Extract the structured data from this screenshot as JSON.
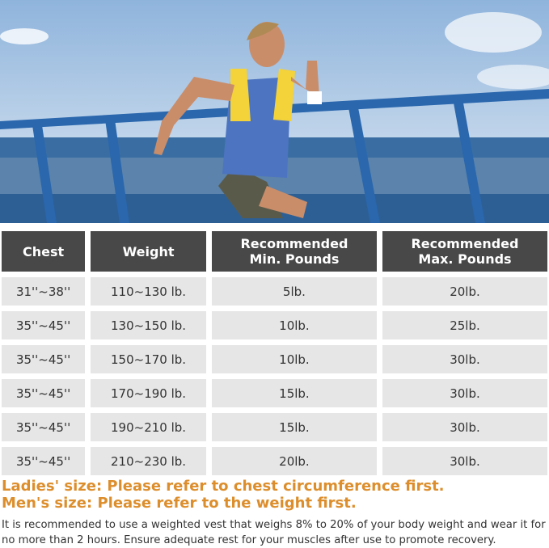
{
  "photo": {
    "description_icon": "woman-running-weighted-vest-photo",
    "colors": {
      "sky": "#a9c6e3",
      "railing": "#2f6fb5",
      "vest": "#f3d23a"
    }
  },
  "table": {
    "headers": [
      "Chest",
      "Weight",
      "Recommended Min. Pounds",
      "Recommended Max. Pounds"
    ],
    "header_lines": [
      [
        "Chest"
      ],
      [
        "Weight"
      ],
      [
        "Recommended",
        "Min. Pounds"
      ],
      [
        "Recommended",
        "Max. Pounds"
      ]
    ],
    "rows": [
      [
        "31''~38''",
        "110~130 lb.",
        "5lb.",
        "20lb."
      ],
      [
        "35''~45''",
        "130~150 lb.",
        "10lb.",
        "25lb."
      ],
      [
        "35''~45''",
        "150~170 lb.",
        "10lb.",
        "30lb."
      ],
      [
        "35''~45''",
        "170~190 lb.",
        "15lb.",
        "30lb."
      ],
      [
        "35''~45''",
        "190~210 lb.",
        "15lb.",
        "30lb."
      ],
      [
        "35''~45''",
        "210~230 lb.",
        "20lb.",
        "30lb."
      ]
    ]
  },
  "notes": {
    "ladies": "Ladies' size: Please refer to chest circumference first.",
    "mens": "Men's size: Please refer to the weight first.",
    "accent_color": "#dd8e2c"
  },
  "paragraph": "It is recommended to use a weighted vest that weighs 8% to 20% of your body weight and wear it for no more than 2 hours. Ensure adequate rest for your muscles after use to promote recovery."
}
